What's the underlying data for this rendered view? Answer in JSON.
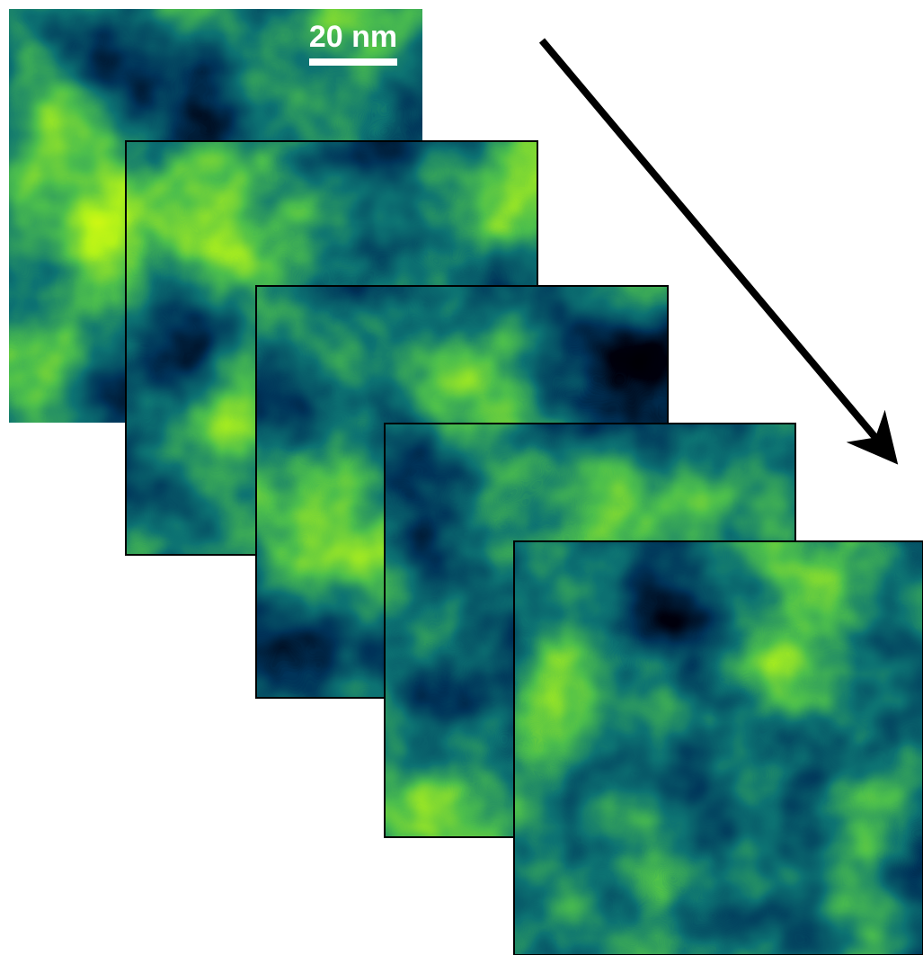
{
  "scale_bar": {
    "label": "20 nm"
  }
}
